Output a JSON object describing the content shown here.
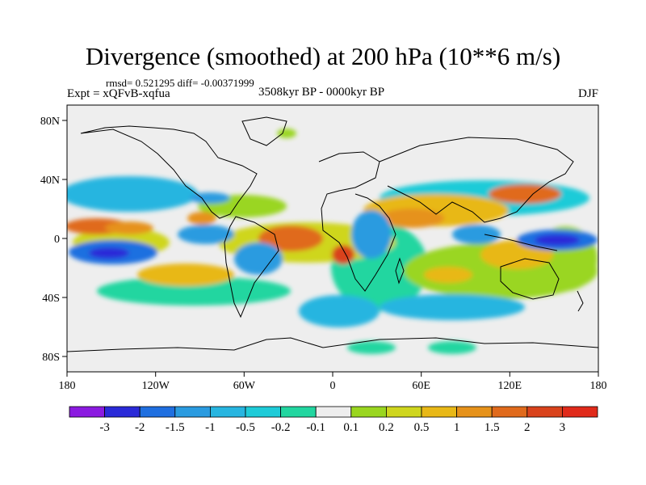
{
  "title": "Divergence (smoothed) at 200 hPa (10**6 m/s)",
  "stats": "rmsd= 0.521295 diff= -0.00371999",
  "experiment": "Expt = xQFvB-xqfua",
  "period": "3508kyr BP - 0000kyr BP",
  "season": "DJF",
  "axes": {
    "lon_ticks": [
      "180",
      "120W",
      "60W",
      "0",
      "60E",
      "120E",
      "180"
    ],
    "lat_ticks": [
      "80N",
      "40N",
      "0",
      "40S",
      "80S"
    ]
  },
  "colorbar": {
    "labels": [
      "-3",
      "-2",
      "-1.5",
      "-1",
      "-0.5",
      "-0.2",
      "-0.1",
      "0.1",
      "0.2",
      "0.5",
      "1",
      "1.5",
      "2",
      "3"
    ],
    "colors": [
      "#8b1ae0",
      "#2a2ad8",
      "#1f6fe0",
      "#2a9be0",
      "#27b5e0",
      "#1ecbd8",
      "#22d6a0",
      "#eeeeee",
      "#9ad620",
      "#cfd61e",
      "#e8b817",
      "#e6921a",
      "#e06a1c",
      "#d9431c",
      "#e02a1a"
    ]
  }
}
